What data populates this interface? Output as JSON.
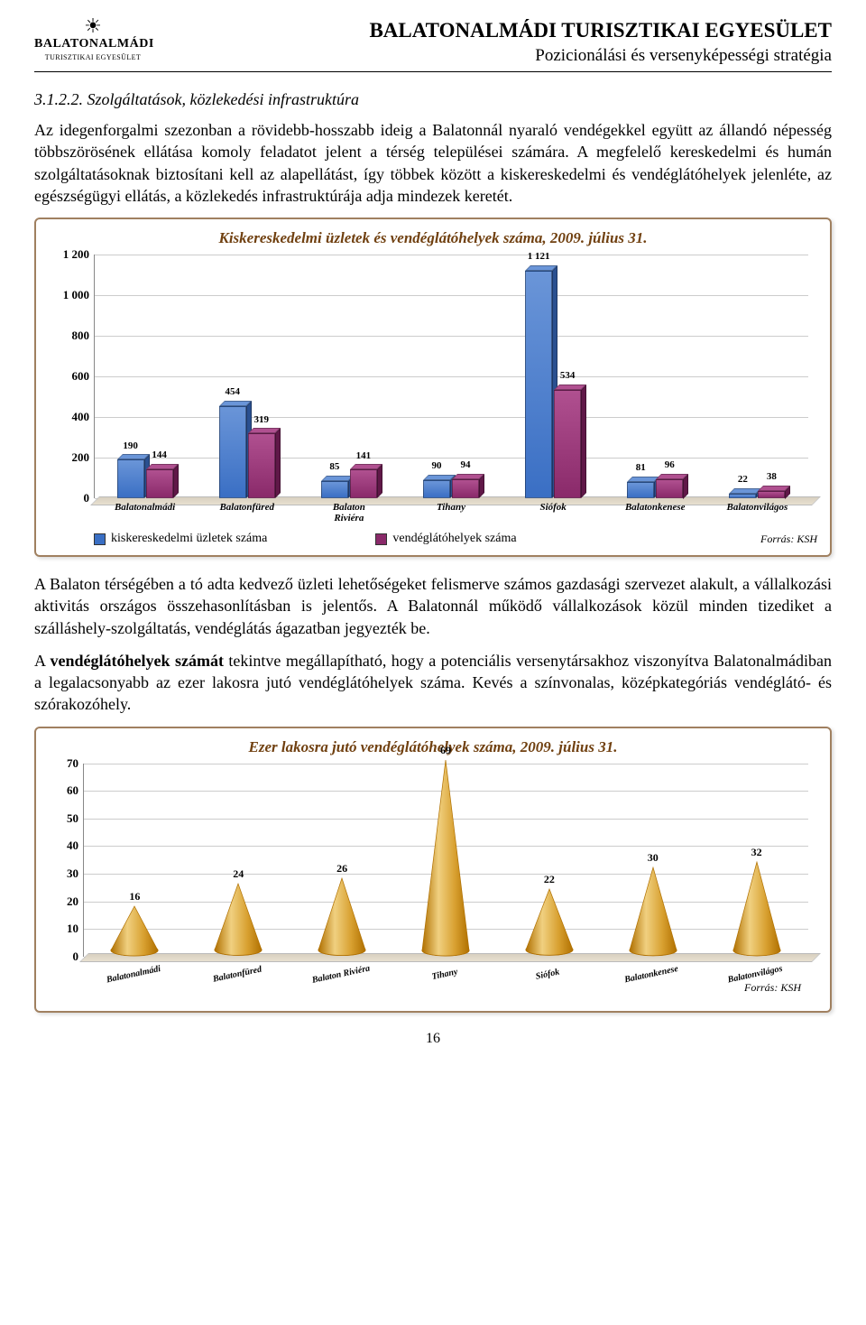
{
  "header": {
    "org": "BALATONALMÁDI TURISZTIKAI EGYESÜLET",
    "subtitle": "Pozicionálási és versenyképességi stratégia",
    "logo_name": "BALATONALMÁDI",
    "logo_sub": "TURISZTIKAI EGYESÜLET"
  },
  "section": {
    "num": "3.1.2.2.",
    "title": "Szolgáltatások, közlekedési infrastruktúra"
  },
  "para1": "Az idegenforgalmi szezonban a rövidebb-hosszabb ideig a Balatonnál nyaraló vendégekkel együtt az állandó népesség többszörösének ellátása komoly feladatot jelent a térség települései számára. A megfelelő kereskedelmi és humán szolgáltatásoknak biztosítani kell az alapellátást, így többek között a kiskereskedelmi és vendéglátóhelyek jelenléte, az egészségügyi ellátás, a közlekedés infrastruktúrája adja mindezek keretét.",
  "para2": "A Balaton térségében a tó adta kedvező üzleti lehetőségeket felismerve számos gazdasági szervezet alakult, a vállalkozási aktivitás országos összehasonlításban is jelentős. A Balatonnál működő vállalkozások közül minden tizediket a szálláshely-szolgáltatás, vendéglátás ágazatban jegyezték be.",
  "para3_a": "A ",
  "para3_b": "vendéglátóhelyek számát",
  "para3_c": " tekintve megállapítható, hogy a potenciális versenytársakhoz viszonyítva Balatonalmádiban a legalacsonyabb az ezer lakosra jutó vendéglátóhelyek száma. Kevés a színvonalas, középkategóriás vendéglátó- és szórakozóhely.",
  "chart1": {
    "title": "Kiskereskedelmi üzletek és vendéglátóhelyek száma, 2009. július 31.",
    "categories": [
      "Balatonalmádi",
      "Balatonfüred",
      "Balaton Riviéra",
      "Tihany",
      "Siófok",
      "Balatonkenese",
      "Balatonvilágos"
    ],
    "series": [
      {
        "name": "kiskereskedelmi üzletek száma",
        "color": "#3a6fc4",
        "top_color": "#6a95d8",
        "side_color": "#2a5090",
        "values": [
          190,
          454,
          85,
          90,
          1121,
          81,
          22
        ]
      },
      {
        "name": "vendéglátóhelyek száma",
        "color": "#8a2a6a",
        "top_color": "#b05090",
        "side_color": "#601848",
        "values": [
          144,
          319,
          141,
          94,
          534,
          96,
          38
        ]
      }
    ],
    "ylim": [
      0,
      1200
    ],
    "ytick_step": 200,
    "yticks": [
      "0",
      "200",
      "400",
      "600",
      "800",
      "1 000",
      "1 200"
    ],
    "grid_color": "#cccccc",
    "label_fontsize": 11,
    "source": "Forrás: KSH"
  },
  "chart2": {
    "title": "Ezer lakosra jutó vendéglátóhelyek száma, 2009. július 31.",
    "categories": [
      "Balatonalmádi",
      "Balatonfüred",
      "Balaton Riviéra",
      "Tihany",
      "Siófok",
      "Balatonkenese",
      "Balatonvilágos"
    ],
    "values": [
      16,
      24,
      26,
      69,
      22,
      30,
      32
    ],
    "cone_fill": "#d8a030",
    "cone_edge": "#b07000",
    "cone_highlight": "#f0d080",
    "ylim": [
      0,
      70
    ],
    "ytick_step": 10,
    "yticks": [
      "0",
      "10",
      "20",
      "30",
      "40",
      "50",
      "60",
      "70"
    ],
    "grid_color": "#cccccc",
    "source": "Forrás: KSH"
  },
  "page_number": "16"
}
